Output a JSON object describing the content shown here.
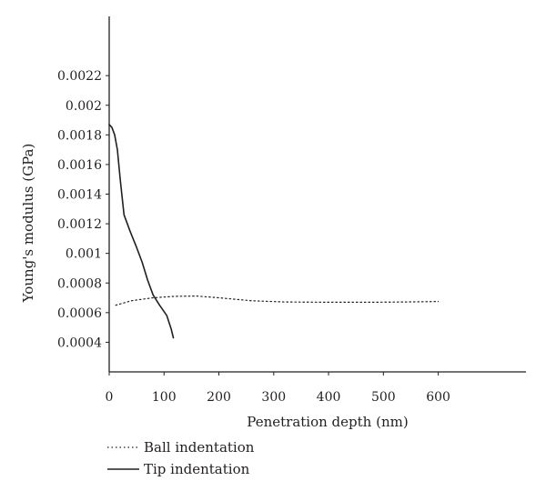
{
  "chart_data": {
    "type": "line",
    "xlabel": "Penetration depth (nm)",
    "ylabel": "Young's modulus (GPa)",
    "xlim": [
      0,
      760
    ],
    "ylim": [
      0.0002,
      0.0026
    ],
    "xticks": [
      0,
      100,
      200,
      300,
      400,
      500,
      600
    ],
    "xtick_labels": [
      "0",
      "100",
      "200",
      "300",
      "400",
      "500",
      "600"
    ],
    "yticks": [
      0.0004,
      0.0006,
      0.0008,
      0.001,
      0.0012,
      0.0014,
      0.0016,
      0.0018,
      0.002,
      0.0022
    ],
    "ytick_labels": [
      "0.0004",
      "0.0006",
      "0.0008",
      "0.001",
      "0.0012",
      "0.0014",
      "0.0016",
      "0.0018",
      "0.002",
      "0.0022"
    ],
    "grid": false,
    "legend_position": "bottom-left",
    "series": [
      {
        "name": "Ball indentation",
        "style": "dotted",
        "color": "#231f20",
        "points": [
          [
            12,
            0.00065
          ],
          [
            40,
            0.00068
          ],
          [
            80,
            0.0007
          ],
          [
            120,
            0.00071
          ],
          [
            160,
            0.000712
          ],
          [
            200,
            0.0007
          ],
          [
            260,
            0.00068
          ],
          [
            320,
            0.000672
          ],
          [
            400,
            0.00067
          ],
          [
            480,
            0.00067
          ],
          [
            540,
            0.000672
          ],
          [
            600,
            0.000675
          ]
        ]
      },
      {
        "name": "Tip indentation",
        "style": "solid",
        "color": "#231f20",
        "points": [
          [
            0,
            0.00187
          ],
          [
            5,
            0.00185
          ],
          [
            10,
            0.0018
          ],
          [
            15,
            0.0017
          ],
          [
            20,
            0.0015
          ],
          [
            27,
            0.00126
          ],
          [
            38,
            0.00115
          ],
          [
            50,
            0.00104
          ],
          [
            60,
            0.00094
          ],
          [
            70,
            0.00082
          ],
          [
            80,
            0.00072
          ],
          [
            92,
            0.00065
          ],
          [
            105,
            0.00058
          ],
          [
            113,
            0.00049
          ],
          [
            117,
            0.00043
          ]
        ]
      }
    ]
  }
}
